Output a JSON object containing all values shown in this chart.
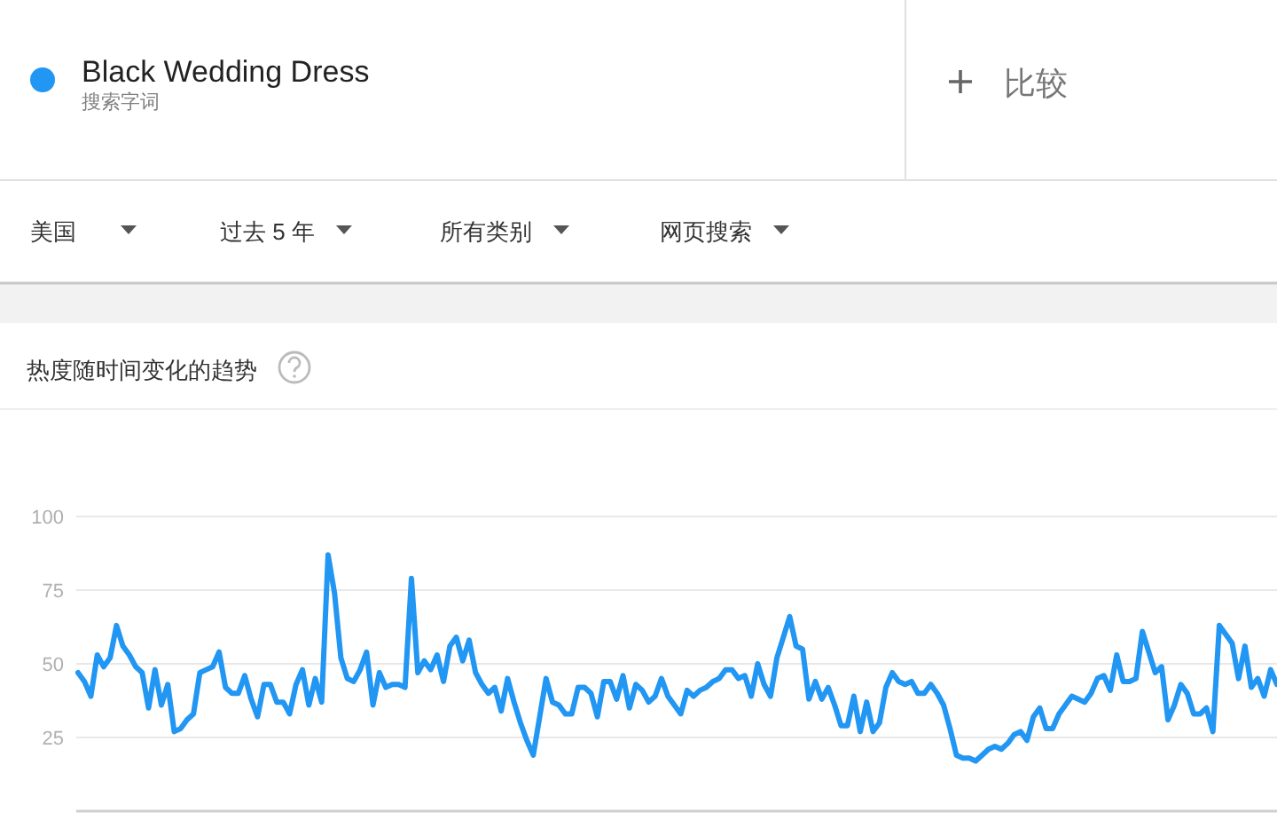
{
  "chart_data": {
    "type": "line",
    "title": "热度随时间变化的趋势",
    "categories": [
      null,
      null,
      null,
      null,
      null,
      null,
      null,
      null,
      null,
      null,
      null,
      null,
      null,
      null,
      null,
      null,
      null,
      null,
      null,
      null,
      null,
      null,
      null,
      null,
      null,
      null,
      null,
      null,
      null,
      null,
      null,
      null,
      null,
      null,
      null,
      null,
      null,
      null,
      null,
      null,
      null,
      null,
      null,
      null,
      null,
      null,
      null,
      null,
      null,
      null,
      null,
      null,
      null,
      null,
      null,
      null,
      null,
      null,
      null,
      null,
      null,
      null,
      null,
      null,
      null,
      null,
      null,
      null,
      null,
      null,
      null,
      null,
      null,
      null,
      null,
      null,
      null,
      null,
      null,
      null,
      null,
      null,
      null,
      null,
      null,
      null,
      null,
      null,
      null,
      null,
      null,
      null,
      null,
      null,
      null,
      null,
      null,
      null,
      null,
      null,
      null,
      null,
      null,
      null,
      null,
      null,
      null,
      null,
      null,
      null,
      null,
      null,
      null,
      null,
      null,
      null,
      null,
      null,
      null,
      null,
      null,
      null,
      null,
      null,
      null,
      null,
      null,
      null,
      null,
      null,
      null,
      null,
      null,
      null,
      null,
      null,
      null,
      null,
      null,
      null,
      null,
      null,
      null,
      null,
      null,
      null,
      null,
      null,
      null,
      null,
      null,
      null,
      null,
      null,
      null,
      null,
      null,
      null,
      null,
      null,
      null,
      null,
      null,
      null,
      null,
      null,
      null,
      null,
      null,
      null,
      null,
      null,
      null,
      null,
      null,
      null,
      null,
      null,
      null,
      null,
      null,
      null,
      null,
      null,
      null,
      null,
      null,
      null
    ],
    "series": [
      {
        "name": "Black Wedding Dress",
        "color": "#2196f3",
        "values": [
          47,
          44,
          39,
          53,
          49,
          52,
          63,
          56,
          53,
          49,
          47,
          35,
          48,
          36,
          43,
          27,
          28,
          31,
          33,
          47,
          48,
          49,
          54,
          42,
          40,
          40,
          46,
          38,
          32,
          43,
          43,
          37,
          37,
          33,
          43,
          48,
          36,
          45,
          37,
          87,
          74,
          52,
          45,
          44,
          48,
          54,
          36,
          47,
          42,
          43,
          43,
          42,
          79,
          47,
          51,
          48,
          53,
          44,
          56,
          59,
          51,
          58,
          47,
          43,
          40,
          42,
          34,
          45,
          37,
          30,
          24,
          19,
          32,
          45,
          37,
          36,
          33,
          33,
          42,
          42,
          40,
          32,
          44,
          44,
          38,
          46,
          35,
          43,
          41,
          37,
          39,
          45,
          39,
          36,
          33,
          41,
          39,
          41,
          42,
          44,
          45,
          48,
          48,
          45,
          46,
          39,
          50,
          43,
          39,
          52,
          59,
          66,
          56,
          55,
          38,
          44,
          38,
          42,
          36,
          29,
          29,
          39,
          27,
          37,
          27,
          30,
          42,
          47,
          44,
          43,
          44,
          40,
          40,
          43,
          40,
          36,
          28,
          19,
          18,
          18,
          17,
          19,
          21,
          22,
          21,
          23,
          26,
          27,
          24,
          32,
          35,
          28,
          28,
          33,
          36,
          39,
          38,
          37,
          40,
          45,
          46,
          41,
          53,
          44,
          44,
          45,
          61,
          54,
          47,
          49,
          31,
          36,
          43,
          40,
          33,
          33,
          35,
          27,
          63,
          60,
          57,
          45,
          56,
          42,
          45,
          39,
          48,
          43
        ]
      }
    ],
    "ylim": [
      0,
      100
    ],
    "yticks": [
      25,
      50,
      75,
      100
    ],
    "grid": "y",
    "legend": "top left",
    "tick_labels": "y",
    "annotations": [
      "搜索字词",
      "比较",
      "美国",
      "过去 5 年",
      "所有类别",
      "网页搜索"
    ]
  }
}
